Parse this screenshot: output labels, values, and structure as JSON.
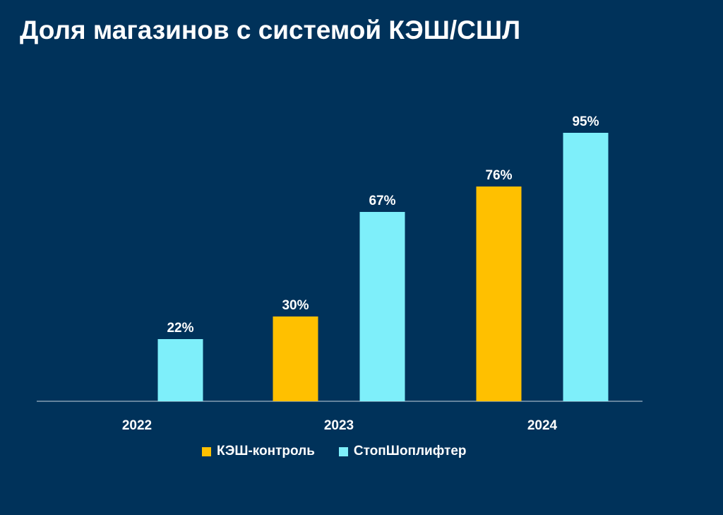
{
  "title": "Доля магазинов с системой КЭШ/СШЛ",
  "colors": {
    "background": "#00325a",
    "kesh": "#ffc000",
    "stopshop": "#7eeffa",
    "axis": "#c8d4e0",
    "text": "#ffffff"
  },
  "chart_data": {
    "type": "bar",
    "categories": [
      "2022",
      "2023",
      "2024"
    ],
    "series": [
      {
        "name": "КЭШ-контроль",
        "values": [
          null,
          30,
          76
        ],
        "labels": [
          "",
          "30%",
          "76%"
        ]
      },
      {
        "name": "СтопШоплифтер",
        "values": [
          22,
          67,
          95
        ],
        "labels": [
          "22%",
          "67%",
          "95%"
        ]
      }
    ],
    "ylim": [
      0,
      100
    ],
    "unit": "%",
    "grid": false,
    "legend": "bottom",
    "title": "Доля магазинов с системой КЭШ/СШЛ"
  }
}
